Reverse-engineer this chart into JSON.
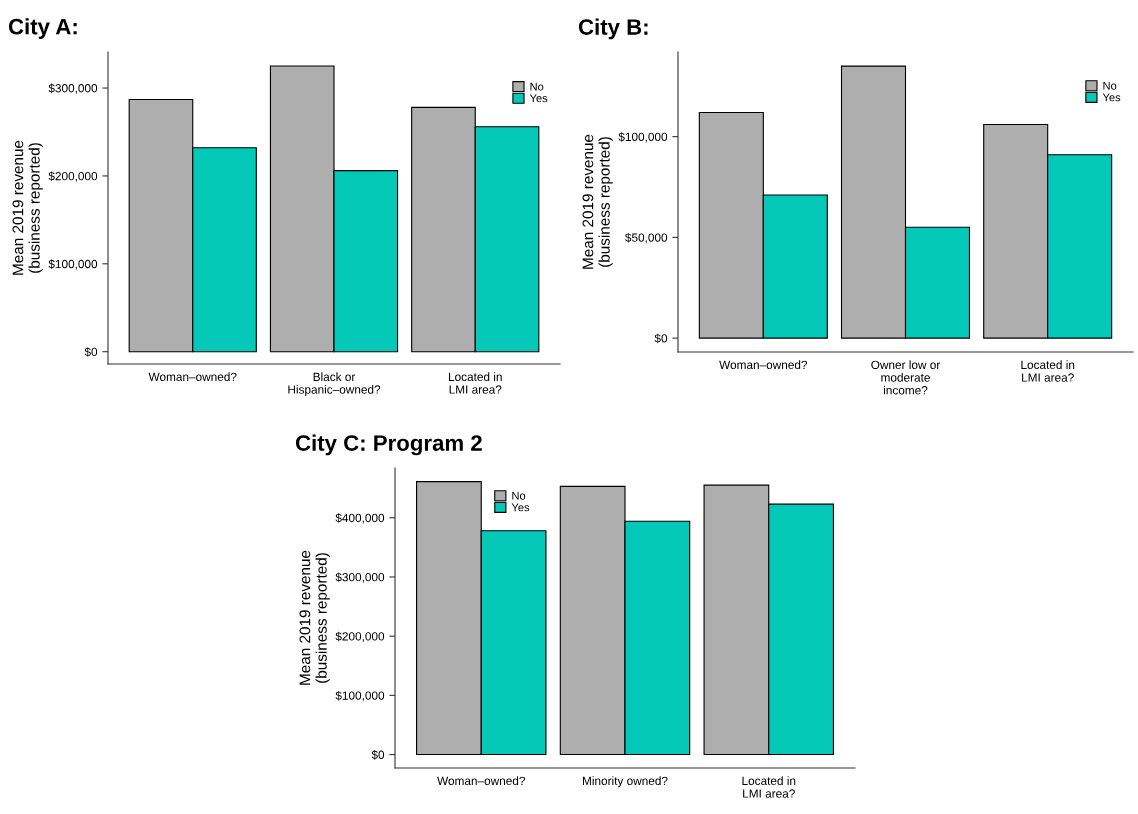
{
  "chart_data": [
    {
      "type": "bar",
      "title": "City A:",
      "ylabel": "Mean 2019 revenue\n(business reported)",
      "categories": [
        "Woman–owned?",
        "Black or\nHispanic–owned?",
        "Located in\nLMI area?"
      ],
      "series": [
        {
          "name": "No",
          "color": "#aeaeae",
          "values": [
            287000,
            325000,
            278000
          ]
        },
        {
          "name": "Yes",
          "color": "#04c9b9",
          "values": [
            232000,
            206000,
            256000
          ]
        }
      ],
      "ylim": [
        -14000,
        341000
      ],
      "yticks": [
        {
          "value": 0,
          "label": "$0"
        },
        {
          "value": 100000,
          "label": "$100,000"
        },
        {
          "value": 200000,
          "label": "$200,000"
        },
        {
          "value": 300000,
          "label": "$300,000"
        }
      ],
      "legend": "top right",
      "grid": false
    },
    {
      "type": "bar",
      "title": "City B:",
      "ylabel": "Mean 2019 revenue\n(business reported)",
      "categories": [
        "Woman–owned?",
        "Owner low or\nmoderate\nincome?",
        "Located in\nLMI area?"
      ],
      "series": [
        {
          "name": "No",
          "color": "#aeaeae",
          "values": [
            112000,
            135000,
            106000
          ]
        },
        {
          "name": "Yes",
          "color": "#04c9b9",
          "values": [
            71000,
            55000,
            91000
          ]
        }
      ],
      "ylim": [
        -6900,
        142000
      ],
      "yticks": [
        {
          "value": 0,
          "label": "$0"
        },
        {
          "value": 50000,
          "label": "$50,000"
        },
        {
          "value": 100000,
          "label": "$100,000"
        }
      ],
      "legend": "top right",
      "grid": false
    },
    {
      "type": "bar",
      "title": "City C: Program 2",
      "ylabel": "Mean 2019 revenue\n(business reported)",
      "categories": [
        "Woman–owned?",
        "Minority owned?",
        "Located in\nLMI area?"
      ],
      "series": [
        {
          "name": "No",
          "color": "#aeaeae",
          "values": [
            461000,
            453000,
            455000
          ]
        },
        {
          "name": "Yes",
          "color": "#04c9b9",
          "values": [
            378000,
            394000,
            423000
          ]
        }
      ],
      "ylim": [
        -22700,
        484000
      ],
      "yticks": [
        {
          "value": 0,
          "label": "$0"
        },
        {
          "value": 100000,
          "label": "$100,000"
        },
        {
          "value": 200000,
          "label": "$200,000"
        },
        {
          "value": 300000,
          "label": "$300,000"
        },
        {
          "value": 400000,
          "label": "$400,000"
        }
      ],
      "legend": "top left",
      "grid": false
    }
  ]
}
